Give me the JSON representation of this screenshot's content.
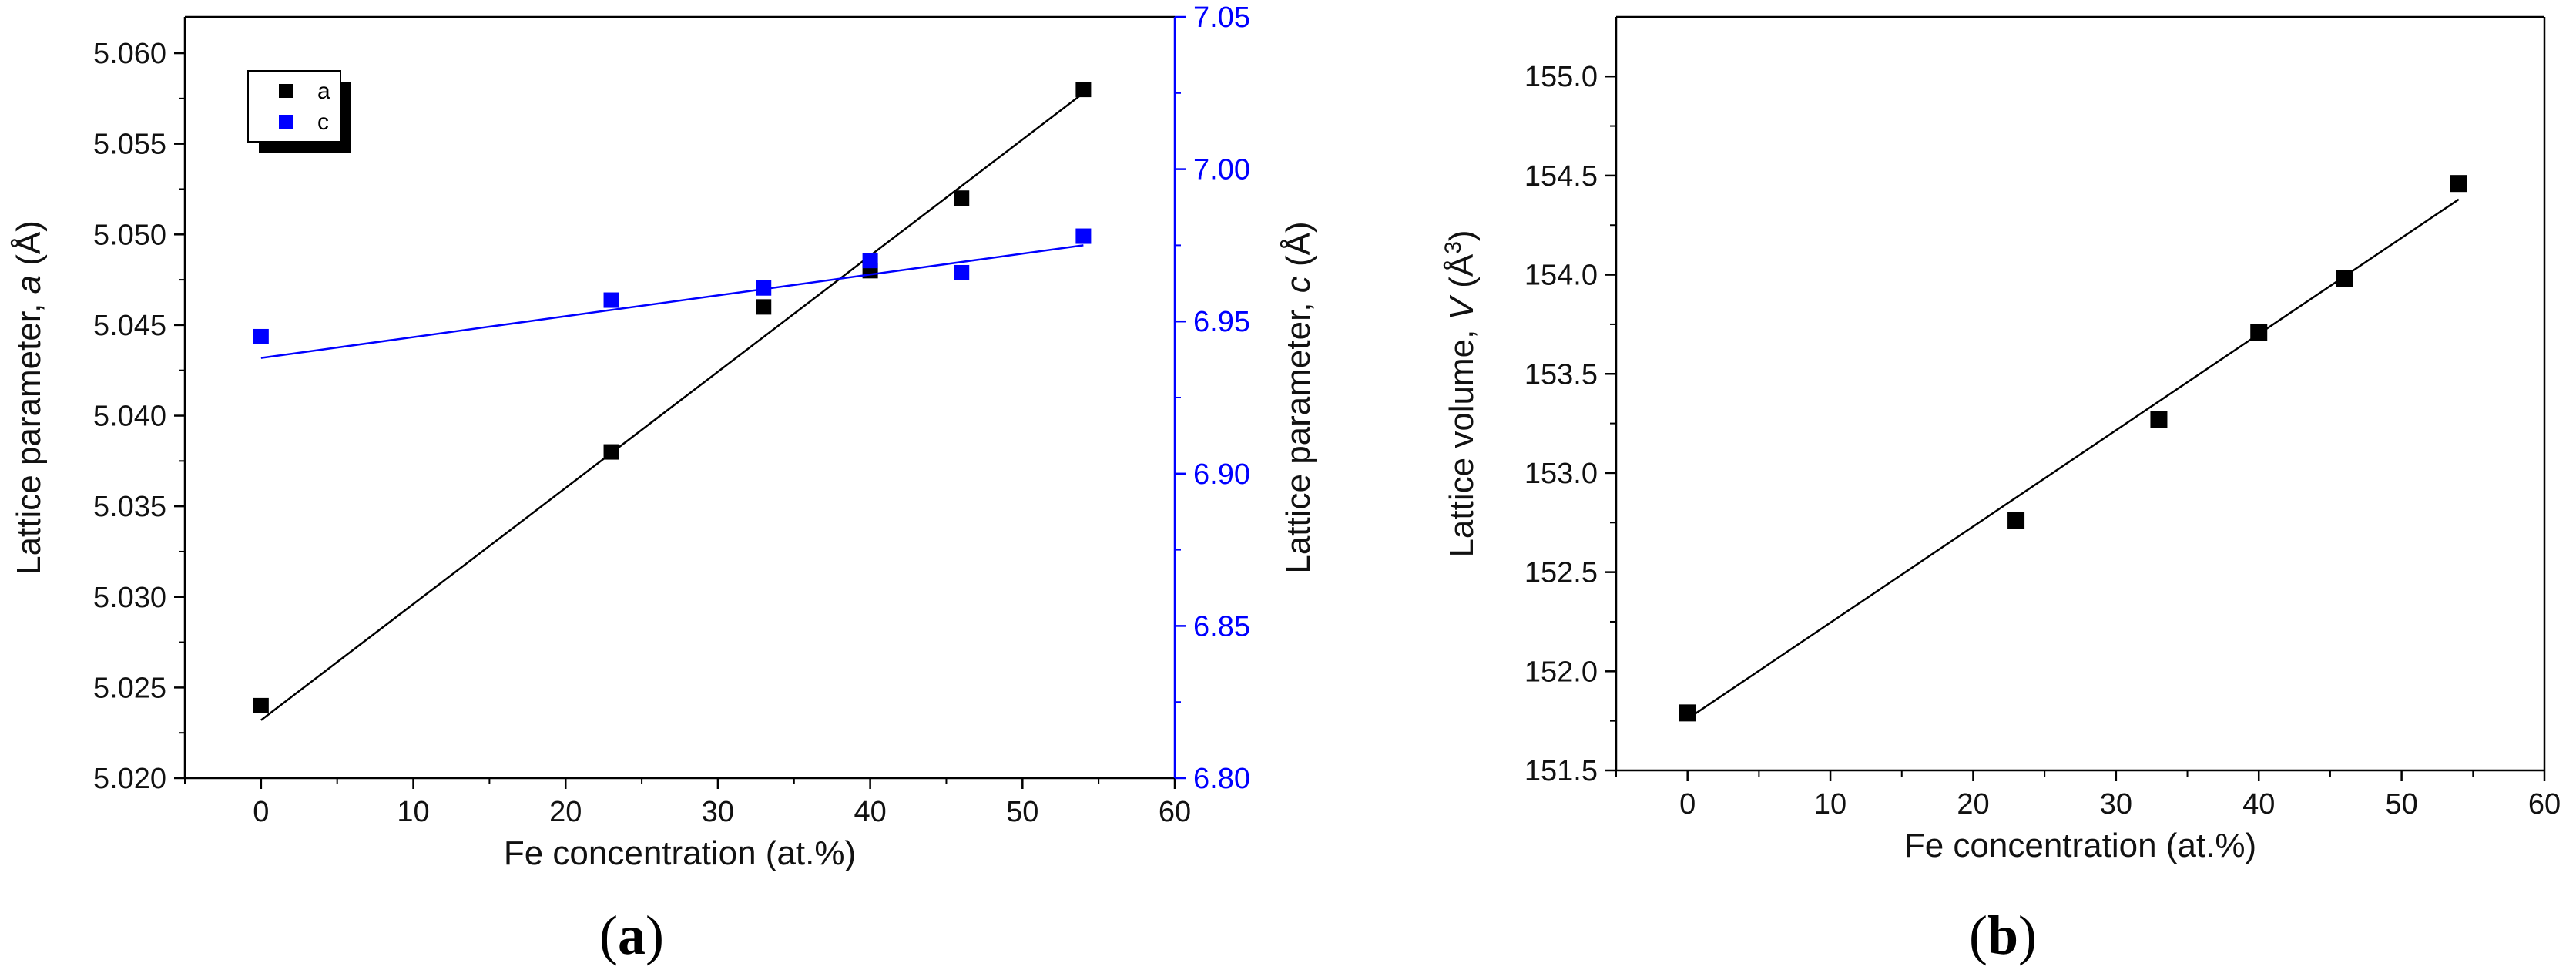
{
  "colors": {
    "series_a": "#000000",
    "series_c": "#0000ff",
    "axis": "#000000"
  },
  "chart_data": [
    {
      "id": "a",
      "type": "scatter",
      "caption_letter": "a",
      "caption_open": "(",
      "caption_close": ")",
      "xlabel": "Fe concentration (at.%)",
      "xlim": [
        -5,
        60
      ],
      "xticks": [
        0,
        10,
        20,
        30,
        40,
        50,
        60
      ],
      "ylabel_left_prefix": "Lattice parameter, ",
      "ylabel_left_var": "a",
      "ylabel_left_suffix": " (Å)",
      "ylim_left": [
        5.02,
        5.062
      ],
      "yticks_left": [
        "5.020",
        "5.025",
        "5.030",
        "5.035",
        "5.040",
        "5.045",
        "5.050",
        "5.055",
        "5.060"
      ],
      "ylabel_right_prefix": "Lattice parameter, ",
      "ylabel_right_var": "c",
      "ylabel_right_suffix": " (Å)",
      "ylim_right": [
        6.8,
        7.05
      ],
      "yticks_right": [
        "6.80",
        "6.85",
        "6.90",
        "6.95",
        "7.00",
        "7.05"
      ],
      "legend": {
        "placement": "top-left",
        "entries": [
          "a",
          "c"
        ]
      },
      "series": [
        {
          "name": "a",
          "axis": "left",
          "color": "#000000",
          "x": [
            0,
            23,
            33,
            40,
            46,
            54
          ],
          "y": [
            5.024,
            5.038,
            5.046,
            5.048,
            5.052,
            5.058
          ],
          "fit": {
            "x": [
              0,
              54
            ],
            "y": [
              5.0232,
              5.0578
            ]
          }
        },
        {
          "name": "c",
          "axis": "right",
          "color": "#0000ff",
          "x": [
            0,
            23,
            33,
            40,
            46,
            54
          ],
          "y": [
            6.945,
            6.957,
            6.961,
            6.97,
            6.966,
            6.978
          ],
          "fit": {
            "x": [
              0,
              54
            ],
            "y": [
              6.938,
              6.975
            ]
          }
        }
      ]
    },
    {
      "id": "b",
      "type": "scatter",
      "caption_letter": "b",
      "caption_open": "(",
      "caption_close": ")",
      "xlabel": "Fe concentration (at.%)",
      "xlim": [
        -5,
        60
      ],
      "xticks": [
        0,
        10,
        20,
        30,
        40,
        50,
        60
      ],
      "ylabel_prefix": "Lattice volume, ",
      "ylabel_var": "V",
      "ylabel_unit": " (Å",
      "ylabel_sup": "3",
      "ylabel_close": ")",
      "ylim": [
        151.5,
        155.3
      ],
      "yticks": [
        "151.5",
        "152.0",
        "152.5",
        "153.0",
        "153.5",
        "154.0",
        "154.5",
        "155.0"
      ],
      "series": [
        {
          "name": "V",
          "color": "#000000",
          "x": [
            0,
            23,
            33,
            40,
            46,
            54
          ],
          "y": [
            151.79,
            152.76,
            153.27,
            153.71,
            153.98,
            154.46
          ],
          "fit": {
            "x": [
              0,
              54
            ],
            "y": [
              151.76,
              154.38
            ]
          }
        }
      ]
    }
  ]
}
